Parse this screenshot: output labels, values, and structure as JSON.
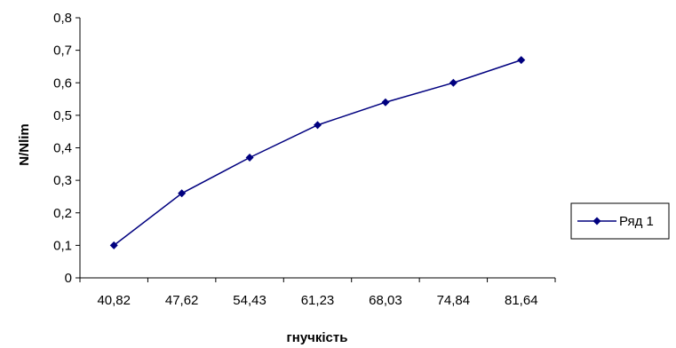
{
  "chart_data": {
    "type": "line",
    "categories": [
      "40,82",
      "47,62",
      "54,43",
      "61,23",
      "68,03",
      "74,84",
      "81,64"
    ],
    "series": [
      {
        "name": "Ряд 1",
        "values": [
          0.1,
          0.26,
          0.37,
          0.47,
          0.54,
          0.6,
          0.67
        ],
        "color": "#00007f"
      }
    ],
    "xlabel": "гнучкість",
    "ylabel": "N/Nlim",
    "ylim": [
      0,
      0.8
    ],
    "yticks": [
      "0",
      "0,1",
      "0,2",
      "0,3",
      "0,4",
      "0,5",
      "0,6",
      "0,7",
      "0,8"
    ],
    "grid": false,
    "legend_position": "right",
    "marker": "diamond"
  }
}
